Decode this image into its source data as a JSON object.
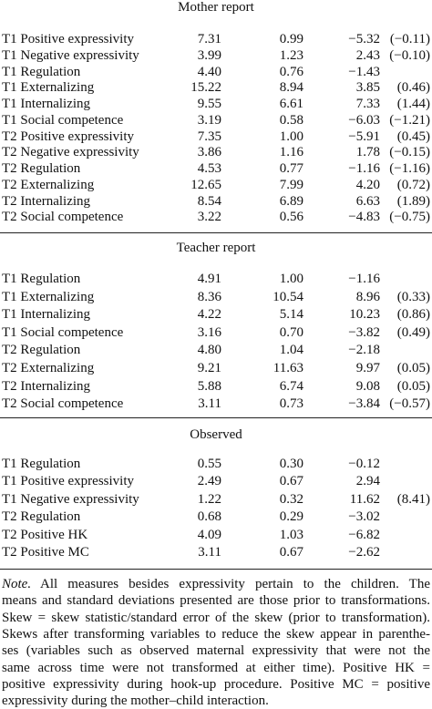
{
  "sections": [
    {
      "title": "Mother report",
      "rows": [
        [
          "T1 Positive expressivity",
          "7.31",
          "0.99",
          "−5.32",
          "(−0.11)"
        ],
        [
          "T1 Negative expressivity",
          "3.99",
          "1.23",
          "2.43",
          "(−0.10)"
        ],
        [
          "T1 Regulation",
          "4.40",
          "0.76",
          "−1.43"
        ],
        [
          "T1 Externalizing",
          "15.22",
          "8.94",
          "3.85",
          "(0.46)"
        ],
        [
          "T1 Internalizing",
          "9.55",
          "6.61",
          "7.33",
          "(1.44)"
        ],
        [
          "T1 Social competence",
          "3.19",
          "0.58",
          "−6.03",
          "(−1.21)"
        ],
        [
          "T2 Positive expressivity",
          "7.35",
          "1.00",
          "−5.91",
          "(0.45)"
        ],
        [
          "T2 Negative expressivity",
          "3.86",
          "1.16",
          "1.78",
          "(−0.15)"
        ],
        [
          "T2 Regulation",
          "4.53",
          "0.77",
          "−1.16",
          "(−1.16)"
        ],
        [
          "T2 Externalizing",
          "12.65",
          "7.99",
          "4.20",
          "(0.72)"
        ],
        [
          "T2 Internalizing",
          "8.54",
          "6.89",
          "6.63",
          "(1.89)"
        ],
        [
          "T2 Social competence",
          "3.22",
          "0.56",
          "−4.83",
          "(−0.75)"
        ]
      ]
    },
    {
      "title": "Teacher report",
      "rows": [
        [
          "T1 Regulation",
          "4.91",
          "1.00",
          "−1.16"
        ],
        [
          "T1 Externalizing",
          "8.36",
          "10.54",
          "8.96",
          "(0.33)"
        ],
        [
          "T1 Internalizing",
          "4.22",
          "5.14",
          "10.23",
          "(0.86)"
        ],
        [
          "T1 Social competence",
          "3.16",
          "0.70",
          "−3.82",
          "(0.49)"
        ],
        [
          "T2 Regulation",
          "4.80",
          "1.04",
          "−2.18"
        ],
        [
          "T2 Externalizing",
          "9.21",
          "11.63",
          "9.97",
          "(0.05)"
        ],
        [
          "T2 Internalizing",
          "5.88",
          "6.74",
          "9.08",
          "(0.05)"
        ],
        [
          "T2 Social competence",
          "3.11",
          "0.73",
          "−3.84",
          "(−0.57)"
        ]
      ]
    },
    {
      "title": "Observed",
      "rows": [
        [
          "T1 Regulation",
          "0.55",
          "0.30",
          "−0.12"
        ],
        [
          "T1 Positive expressivity",
          "2.49",
          "0.67",
          "2.94"
        ],
        [
          "T1 Negative expressivity",
          "1.22",
          "0.32",
          "11.62",
          "(8.41)"
        ],
        [
          "T2 Regulation",
          "0.68",
          "0.29",
          "−3.02"
        ],
        [
          "T2 Positive HK",
          "4.09",
          "1.03",
          "−6.82"
        ],
        [
          "T2 Positive MC",
          "3.11",
          "0.67",
          "−2.62"
        ]
      ]
    }
  ],
  "note": {
    "label": "Note.",
    "lines": [
      "All measures besides expressivity pertain to the children. The",
      "means and standard deviations presented are those prior to transformations.",
      "Skew = skew statistic/standard error of the skew (prior to transformation).",
      "Skews after transforming variables to reduce the skew appear in parenthe-",
      "ses (variables such as observed maternal expressivity that were not the",
      "same across time were not transformed at either time). Positive HK =",
      "positive expressivity during hook-up procedure. Positive MC = positive",
      "expressivity during the mother–child interaction."
    ]
  }
}
